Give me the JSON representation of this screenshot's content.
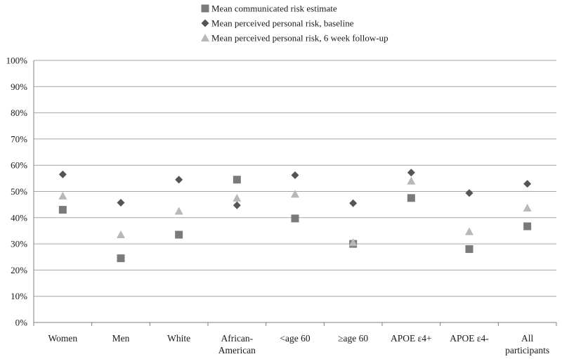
{
  "chart_data": {
    "type": "scatter",
    "categories": [
      [
        "Women"
      ],
      [
        "Men"
      ],
      [
        "White"
      ],
      [
        "African-",
        "American"
      ],
      [
        "<age 60"
      ],
      [
        "≥age 60"
      ],
      [
        "APOE ε4+"
      ],
      [
        "APOE ε4-"
      ],
      [
        "All",
        "participants"
      ]
    ],
    "series": [
      {
        "name": "Mean communicated risk estimate",
        "marker": "square",
        "color": "#7a7a7a",
        "values": [
          43,
          24.5,
          33.5,
          54.5,
          39.7,
          30,
          47.5,
          28,
          36.7
        ]
      },
      {
        "name": "Mean perceived personal risk, baseline",
        "marker": "diamond",
        "color": "#555555",
        "values": [
          56.5,
          45.7,
          54.5,
          44.7,
          56.2,
          45.5,
          57.2,
          49.4,
          52.9
        ]
      },
      {
        "name": "Mean perceived personal risk, 6 week follow-up",
        "marker": "triangle",
        "color": "#b8b8b8",
        "values": [
          48.3,
          33.5,
          42.5,
          47.5,
          49,
          30.5,
          54,
          34.7,
          43.7
        ]
      }
    ],
    "y_ticks": [
      "0%",
      "10%",
      "20%",
      "30%",
      "40%",
      "50%",
      "60%",
      "70%",
      "80%",
      "90%",
      "100%"
    ],
    "ylim": [
      0,
      100
    ],
    "grid": true,
    "legend_position": "top"
  }
}
